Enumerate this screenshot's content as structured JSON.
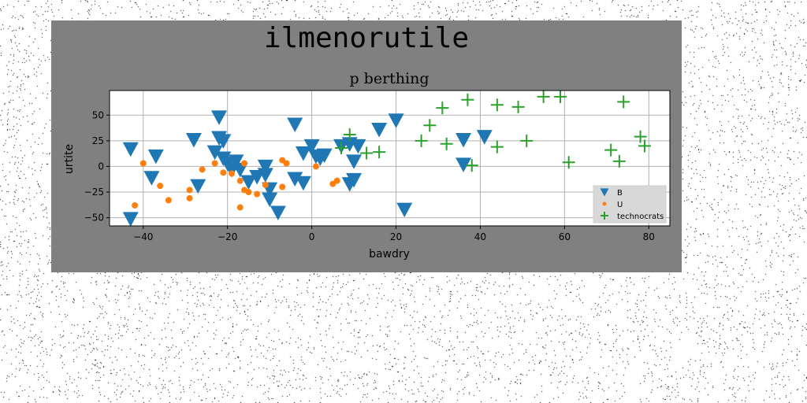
{
  "figure": {
    "suptitle": "ilmenorutile",
    "background": "#808080",
    "page_background": "#ffffff"
  },
  "chart_data": {
    "type": "scatter",
    "title": "p berthing",
    "xlabel": "bawdry",
    "ylabel": "urtite",
    "xlim": [
      -48,
      85
    ],
    "ylim": [
      -58,
      74
    ],
    "xticks": [
      -40,
      -20,
      0,
      20,
      40,
      60,
      80
    ],
    "yticks": [
      -50,
      -25,
      0,
      25,
      50
    ],
    "grid": true,
    "legend": "bottom-right",
    "series": [
      {
        "name": "B",
        "marker": "triangle-down",
        "color": "#1f77b4",
        "points": [
          [
            -43,
            17
          ],
          [
            -43,
            -51
          ],
          [
            -38,
            -11
          ],
          [
            -37,
            10
          ],
          [
            -28,
            26
          ],
          [
            -27,
            -19
          ],
          [
            -23,
            14
          ],
          [
            -22,
            28
          ],
          [
            -22,
            48
          ],
          [
            -21,
            25
          ],
          [
            -21,
            8
          ],
          [
            -20,
            3
          ],
          [
            -19,
            -3
          ],
          [
            -18,
            5
          ],
          [
            -17,
            -3
          ],
          [
            -15,
            -15
          ],
          [
            -13,
            -10
          ],
          [
            -11,
            -8
          ],
          [
            -11,
            0
          ],
          [
            -10,
            -22
          ],
          [
            -10,
            -32
          ],
          [
            -8,
            -45
          ],
          [
            -4,
            41
          ],
          [
            -4,
            -12
          ],
          [
            -2,
            -16
          ],
          [
            -2,
            13
          ],
          [
            0,
            20
          ],
          [
            1,
            10
          ],
          [
            2,
            8
          ],
          [
            3,
            11
          ],
          [
            7,
            20
          ],
          [
            9,
            22
          ],
          [
            9,
            -17
          ],
          [
            10,
            5
          ],
          [
            10,
            -13
          ],
          [
            11,
            20
          ],
          [
            16,
            36
          ],
          [
            20,
            45
          ],
          [
            22,
            -42
          ],
          [
            36,
            2
          ],
          [
            36,
            26
          ],
          [
            41,
            29
          ]
        ]
      },
      {
        "name": "U",
        "marker": "circle",
        "color": "#ff7f0e",
        "points": [
          [
            -42,
            -38
          ],
          [
            -40,
            3
          ],
          [
            -36,
            -19
          ],
          [
            -34,
            -33
          ],
          [
            -29,
            -23
          ],
          [
            -29,
            -31
          ],
          [
            -26,
            -3
          ],
          [
            -23,
            3
          ],
          [
            -21,
            -6
          ],
          [
            -19,
            -7
          ],
          [
            -17,
            -40
          ],
          [
            -17,
            -14
          ],
          [
            -16,
            -23
          ],
          [
            -16,
            3
          ],
          [
            -15,
            -25
          ],
          [
            -13,
            -27
          ],
          [
            -11,
            -18
          ],
          [
            -7,
            -20
          ],
          [
            -7,
            6
          ],
          [
            -6,
            3
          ],
          [
            1,
            0
          ],
          [
            5,
            -17
          ],
          [
            6,
            -14
          ]
        ]
      },
      {
        "name": "technocrats",
        "marker": "plus",
        "color": "#2ca02c",
        "points": [
          [
            7,
            18
          ],
          [
            9,
            31
          ],
          [
            13,
            13
          ],
          [
            16,
            14
          ],
          [
            26,
            25
          ],
          [
            28,
            40
          ],
          [
            31,
            57
          ],
          [
            32,
            22
          ],
          [
            37,
            65
          ],
          [
            38,
            1
          ],
          [
            44,
            60
          ],
          [
            44,
            19
          ],
          [
            49,
            58
          ],
          [
            51,
            25
          ],
          [
            55,
            68
          ],
          [
            59,
            68
          ],
          [
            61,
            4
          ],
          [
            71,
            16
          ],
          [
            73,
            5
          ],
          [
            74,
            63
          ],
          [
            78,
            29
          ],
          [
            79,
            20
          ]
        ]
      }
    ]
  }
}
